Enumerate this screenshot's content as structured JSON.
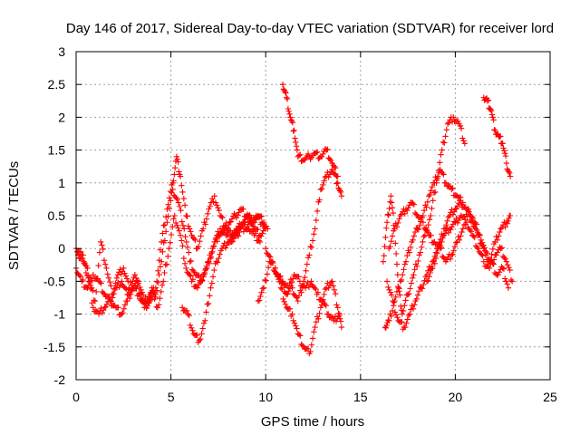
{
  "chart_data": {
    "type": "scatter",
    "title": "Day 146 of 2017, Sidereal Day-to-day VTEC variation (SDTVAR) for receiver lord",
    "xlabel": "GPS time / hours",
    "ylabel": "SDTVAR / TECUs",
    "xlim": [
      0,
      25
    ],
    "ylim": [
      -2,
      3
    ],
    "xticks": [
      0,
      5,
      10,
      15,
      20,
      25
    ],
    "yticks": [
      -2,
      -1.5,
      -1,
      -0.5,
      0,
      0.5,
      1,
      1.5,
      2,
      2.5,
      3
    ],
    "xtick_labels": [
      "0",
      "5",
      "10",
      "15",
      "20",
      "25"
    ],
    "ytick_labels": [
      "-2",
      "-1.5",
      "-1",
      "-0.5",
      "0",
      "0.5",
      "1",
      "1.5",
      "2",
      "2.5",
      "3"
    ],
    "grid": true,
    "marker": "+",
    "color": "#ff0000",
    "series": [
      {
        "x": [
          0.0,
          0.3,
          0.6,
          0.9,
          1.2,
          1.5,
          1.8,
          2.1,
          2.4,
          2.7,
          3.0,
          3.3,
          3.6,
          3.9,
          4.2,
          4.5,
          4.8,
          5.1,
          5.3,
          5.5,
          5.8,
          6.1,
          6.4,
          6.7,
          7.0,
          7.3,
          7.6,
          7.9,
          8.2,
          8.5,
          8.8,
          9.1,
          9.4,
          9.7,
          10.0
        ],
        "y": [
          -0.3,
          -0.5,
          -0.6,
          -0.4,
          -0.5,
          -0.7,
          -0.8,
          -0.6,
          -0.5,
          -0.7,
          -0.6,
          -0.5,
          -0.8,
          -0.7,
          -0.6,
          0.1,
          0.6,
          1.0,
          1.4,
          1.1,
          0.5,
          0.2,
          0.0,
          0.3,
          0.6,
          0.8,
          0.5,
          0.3,
          0.2,
          0.3,
          0.4,
          0.5,
          0.3,
          0.2,
          0.3
        ]
      },
      {
        "x": [
          0.0,
          0.3,
          0.6,
          0.9,
          1.2,
          1.5,
          1.8,
          2.1,
          2.4,
          2.7,
          3.0,
          3.3,
          3.6,
          3.9,
          4.2,
          4.5,
          4.8,
          5.1,
          5.4,
          5.7,
          6.0,
          6.3,
          6.6,
          6.9,
          7.2,
          7.5,
          7.8,
          8.1,
          8.4,
          8.7,
          9.0,
          9.3,
          9.6,
          9.9
        ],
        "y": [
          0.0,
          -0.1,
          -0.3,
          -0.9,
          -1.0,
          -0.9,
          -0.8,
          -0.9,
          -1.0,
          -0.8,
          -0.6,
          -0.7,
          -0.9,
          -0.8,
          -0.7,
          -0.2,
          0.4,
          0.9,
          0.7,
          0.3,
          -0.2,
          -0.4,
          -0.5,
          -0.3,
          0.0,
          0.2,
          0.3,
          0.4,
          0.5,
          0.6,
          0.5,
          0.4,
          0.5,
          0.4
        ]
      },
      {
        "x": [
          0.1,
          0.4,
          0.7,
          1.0,
          1.3,
          1.6,
          1.9,
          2.2,
          2.5,
          2.8,
          3.1,
          3.4,
          3.7,
          4.0,
          4.3,
          4.6,
          4.9,
          5.2,
          5.5,
          5.8,
          6.1,
          6.4,
          6.7,
          7.0,
          7.3,
          7.6,
          7.9,
          8.2,
          8.5,
          8.8,
          9.1,
          9.4,
          9.7
        ],
        "y": [
          -0.1,
          -0.2,
          -0.5,
          -0.8,
          0.1,
          -0.3,
          -0.7,
          -0.4,
          -0.3,
          -0.6,
          -0.4,
          -0.7,
          -0.9,
          -0.6,
          -0.9,
          -0.5,
          0.0,
          0.5,
          0.2,
          -0.3,
          -0.5,
          -0.6,
          -0.4,
          -0.2,
          0.1,
          0.3,
          0.2,
          0.1,
          0.2,
          0.4,
          0.3,
          0.2,
          0.1
        ]
      },
      {
        "x": [
          5.6,
          5.9,
          6.2,
          6.5,
          6.8,
          7.1,
          7.4,
          7.7,
          8.0,
          8.3,
          8.6,
          8.9,
          9.2,
          9.5,
          9.8,
          10.1
        ],
        "y": [
          -0.9,
          -1.0,
          -1.3,
          -1.4,
          -1.1,
          -0.6,
          -0.2,
          0.0,
          0.1,
          0.2,
          0.3,
          0.3,
          0.4,
          0.5,
          0.4,
          0.3
        ]
      },
      {
        "x": [
          9.6,
          9.9,
          10.2,
          10.5,
          10.8,
          11.1,
          11.4,
          11.7,
          12.0,
          12.3,
          12.6,
          12.9,
          13.2,
          13.5,
          13.8,
          14.0
        ],
        "y": [
          -0.8,
          -0.6,
          -0.2,
          -0.3,
          -0.5,
          -0.7,
          -0.6,
          -0.8,
          -0.5,
          -0.1,
          0.3,
          0.9,
          1.1,
          1.2,
          1.0,
          0.8
        ]
      },
      {
        "x": [
          10.5,
          10.8,
          11.1,
          11.4,
          11.7,
          12.0,
          12.3,
          12.6,
          12.9,
          13.2,
          13.5,
          13.8,
          14.0
        ],
        "y": [
          -0.3,
          -0.6,
          -0.9,
          -1.0,
          -1.3,
          -1.5,
          -1.6,
          -1.2,
          -0.9,
          -0.6,
          -0.5,
          -0.9,
          -1.2
        ]
      },
      {
        "x": [
          10.9,
          11.1,
          11.3,
          11.5,
          11.7,
          12.0,
          12.3,
          12.6,
          12.9,
          13.2,
          13.5,
          13.8
        ],
        "y": [
          2.5,
          2.3,
          2.0,
          1.8,
          1.4,
          1.35,
          1.4,
          1.45,
          1.4,
          1.5,
          1.3,
          1.1
        ]
      },
      {
        "x": [
          10.0,
          10.3,
          10.6,
          10.9,
          11.2,
          11.5,
          11.8,
          12.1,
          12.4,
          12.7,
          13.0,
          13.3,
          13.6,
          13.9
        ],
        "y": [
          0.0,
          -0.2,
          -0.4,
          -0.5,
          -0.6,
          -0.4,
          -0.5,
          -0.6,
          -0.5,
          -0.7,
          -0.8,
          -1.0,
          -1.1,
          -1.0
        ]
      },
      {
        "x": [
          16.2,
          16.4,
          16.6,
          16.8,
          17.0,
          17.2,
          17.5,
          17.8,
          18.1,
          18.4,
          18.7,
          19.0,
          19.3,
          19.6,
          19.9,
          20.2,
          20.5
        ],
        "y": [
          -0.2,
          0.4,
          0.8,
          0.3,
          -0.6,
          -1.0,
          -0.7,
          -0.4,
          -0.1,
          0.2,
          0.5,
          1.0,
          1.5,
          1.9,
          2.0,
          1.9,
          1.6
        ]
      },
      {
        "x": [
          16.3,
          16.5,
          16.8,
          17.1,
          17.4,
          17.7,
          18.0,
          18.3,
          18.6,
          18.9,
          19.2,
          19.5,
          19.8,
          20.1,
          20.4
        ],
        "y": [
          -1.2,
          -1.1,
          -0.8,
          -0.5,
          -0.2,
          0.1,
          0.3,
          0.5,
          0.8,
          1.0,
          1.2,
          1.0,
          0.9,
          0.8,
          0.7
        ]
      },
      {
        "x": [
          16.4,
          16.7,
          17.0,
          17.3,
          17.6,
          17.9,
          18.2,
          18.5,
          18.8,
          19.1,
          19.4,
          19.7,
          20.0,
          20.3,
          20.6,
          20.9,
          21.2,
          21.5,
          21.8,
          22.1,
          22.4,
          22.7,
          23.0
        ],
        "y": [
          -0.5,
          -0.8,
          -1.1,
          -1.2,
          -1.0,
          -0.8,
          -0.6,
          -0.4,
          -0.2,
          0.0,
          0.2,
          0.3,
          0.4,
          0.5,
          0.4,
          0.2,
          0.0,
          -0.2,
          -0.3,
          -0.1,
          0.0,
          -0.2,
          -0.5
        ]
      },
      {
        "x": [
          16.5,
          16.8,
          17.1,
          17.4,
          17.7,
          18.0,
          18.3,
          18.6,
          18.9,
          19.2,
          19.5,
          19.8,
          20.1,
          20.4,
          20.7,
          21.0,
          21.3,
          21.6,
          21.9,
          22.2,
          22.5,
          22.8
        ],
        "y": [
          0.0,
          0.3,
          0.5,
          0.6,
          0.7,
          0.5,
          0.4,
          0.2,
          0.1,
          0.0,
          -0.2,
          -0.1,
          0.1,
          0.3,
          0.6,
          0.4,
          0.2,
          -0.1,
          -0.2,
          -0.4,
          -0.3,
          -0.6
        ]
      },
      {
        "x": [
          18.5,
          18.8,
          19.1,
          19.4,
          19.7,
          20.0,
          20.3,
          20.6,
          20.9,
          21.2,
          21.5,
          21.8,
          22.1,
          22.4,
          22.7,
          22.9
        ],
        "y": [
          -0.5,
          -0.3,
          0.0,
          0.3,
          0.5,
          0.6,
          0.7,
          0.6,
          0.4,
          0.2,
          0.0,
          -0.2,
          0.1,
          0.3,
          0.4,
          0.5
        ]
      },
      {
        "x": [
          21.5,
          21.7,
          21.9,
          22.1,
          22.3,
          22.5,
          22.7,
          22.9
        ],
        "y": [
          2.3,
          2.25,
          2.1,
          1.8,
          1.7,
          1.6,
          1.3,
          1.1
        ]
      }
    ]
  }
}
